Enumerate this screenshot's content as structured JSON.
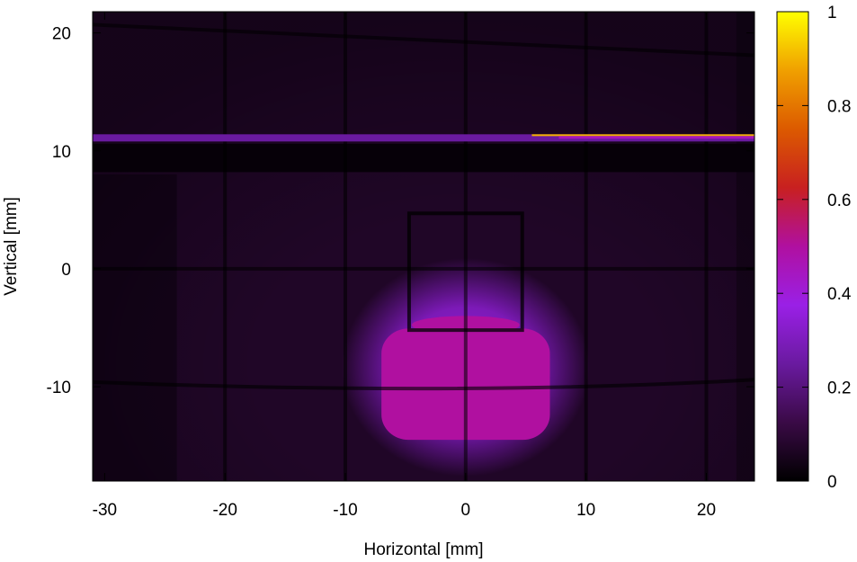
{
  "chart_data": {
    "type": "heatmap",
    "xlabel": "Horizontal [mm]",
    "ylabel": "Vertical [mm]",
    "xlim": [
      -31,
      24
    ],
    "ylim": [
      -18,
      21.8
    ],
    "xticks": [
      -30,
      -20,
      -10,
      0,
      10,
      20
    ],
    "yticks": [
      -10,
      0,
      10,
      20
    ],
    "colorbar": {
      "range": [
        0,
        1
      ],
      "ticks": [
        0,
        0.2,
        0.4,
        0.6,
        0.8,
        1
      ],
      "tick_labels": [
        "0",
        "0.2",
        "0.4",
        "0.6",
        "0.8",
        "1"
      ],
      "colormap": [
        "#000000",
        "#3a0a46",
        "#6a1aa0",
        "#9a20e6",
        "#b010a0",
        "#c82020",
        "#dc5a00",
        "#f0a000",
        "#ffff00"
      ]
    },
    "background_intensity": 0.07,
    "beam_spot": {
      "center": [
        0,
        -8.5
      ],
      "core_extent_x": [
        -7,
        7
      ],
      "core_extent_y": [
        -14.5,
        -4
      ],
      "peak_intensity": 0.5,
      "halo_intensity": 0.2
    },
    "horizontal_band": {
      "y": 11.1,
      "bright_segment_x": [
        5.5,
        24
      ],
      "bright_segment_intensity": 0.9,
      "band_intensity": 0.25
    },
    "dark_band_y": [
      8.2,
      10.6
    ],
    "grid_lines": {
      "vertical_x": [
        -20,
        -10,
        0,
        10,
        20
      ],
      "horizontal_y": [
        -10,
        0,
        20
      ],
      "intensity": 0.0
    },
    "square_frame": {
      "x": [
        -4.7,
        4.7
      ],
      "y": [
        -5.2,
        4.7
      ]
    }
  }
}
